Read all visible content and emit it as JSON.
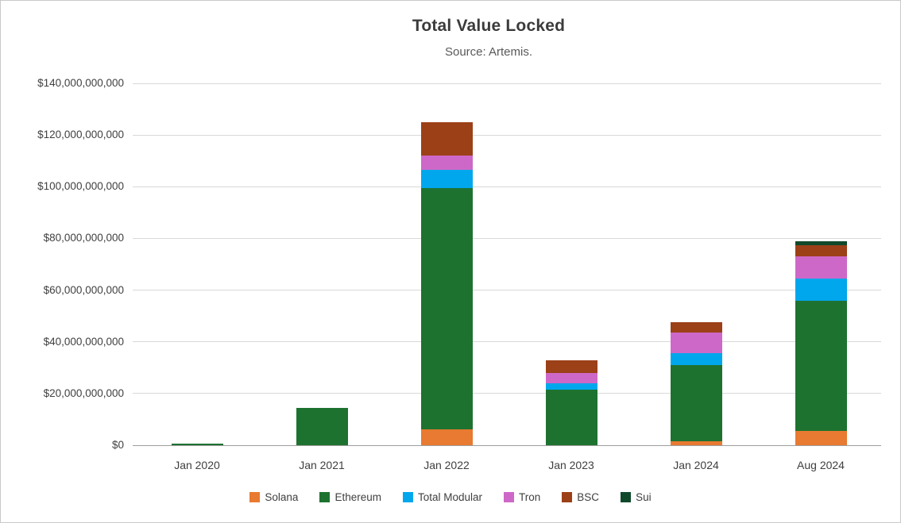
{
  "title": "Total Value Locked",
  "subtitle": "Source: Artemis.",
  "chart_data": {
    "type": "bar",
    "stacked": true,
    "title": "Total Value Locked",
    "subtitle": "Source: Artemis.",
    "xlabel": "",
    "ylabel": "",
    "categories": [
      "Jan 2020",
      "Jan 2021",
      "Jan 2022",
      "Jan 2023",
      "Jan 2024",
      "Aug 2024"
    ],
    "series": [
      {
        "name": "Solana",
        "color": "#E87A31",
        "values": [
          0,
          0,
          6000000000,
          0,
          1500000000,
          5500000000
        ]
      },
      {
        "name": "Ethereum",
        "color": "#1E7230",
        "values": [
          600000000,
          14500000000,
          93500000000,
          21500000000,
          29500000000,
          50500000000
        ]
      },
      {
        "name": "Total Modular",
        "color": "#00A7EC",
        "values": [
          0,
          0,
          7000000000,
          2500000000,
          4500000000,
          8500000000
        ]
      },
      {
        "name": "Tron",
        "color": "#CE68C8",
        "values": [
          0,
          0,
          5500000000,
          4000000000,
          8000000000,
          8500000000
        ]
      },
      {
        "name": "BSC",
        "color": "#9C4018",
        "values": [
          0,
          0,
          13000000000,
          5000000000,
          4000000000,
          4500000000
        ]
      },
      {
        "name": "Sui",
        "color": "#10492A",
        "values": [
          0,
          0,
          0,
          0,
          0,
          1500000000
        ]
      }
    ],
    "bar_totals": [
      600000000,
      14500000000,
      125000000000,
      33000000000,
      47500000000,
      79000000000
    ],
    "ylim": [
      0,
      140000000000
    ],
    "ytick_step": 20000000000,
    "ytick_labels": [
      "$0",
      "$20,000,000,000",
      "$40,000,000,000",
      "$60,000,000,000",
      "$80,000,000,000",
      "$100,000,000,000",
      "$120,000,000,000",
      "$140,000,000,000"
    ],
    "grid": "horizontal",
    "legend_position": "bottom",
    "colors": {
      "gridline": "#D9D9D9",
      "axisline": "#9E9E9E",
      "title_text": "#3B3B3B",
      "subtitle_text": "#595959",
      "axis_text": "#404040"
    }
  }
}
